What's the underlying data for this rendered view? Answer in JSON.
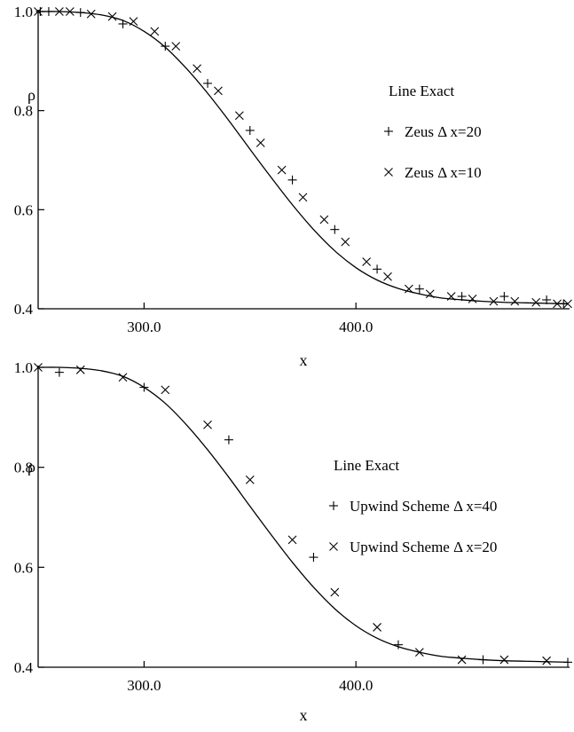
{
  "chart_data": [
    {
      "type": "line",
      "title": "",
      "xlabel": "x",
      "ylabel": "ρ",
      "xlim": [
        250,
        500
      ],
      "ylim": [
        0.4,
        1.0
      ],
      "xticks": [
        300,
        400
      ],
      "xtick_labels": [
        "300.0",
        "400.0"
      ],
      "yticks": [
        0.4,
        0.6,
        0.8,
        1.0
      ],
      "ytick_labels": [
        "0.4",
        "0.6",
        "0.8",
        "1.0"
      ],
      "grid": false,
      "legend_position": "right",
      "series": [
        {
          "name": "Exact",
          "legend_marker": "Line",
          "marker": "line",
          "x": [
            250,
            260,
            270,
            280,
            290,
            300,
            310,
            320,
            330,
            340,
            350,
            360,
            370,
            380,
            390,
            400,
            410,
            420,
            430,
            440,
            450,
            460,
            470,
            480,
            490,
            500
          ],
          "y": [
            1.0,
            1.0,
            0.998,
            0.993,
            0.982,
            0.96,
            0.928,
            0.885,
            0.835,
            0.78,
            0.722,
            0.665,
            0.61,
            0.56,
            0.517,
            0.483,
            0.458,
            0.441,
            0.43,
            0.422,
            0.418,
            0.415,
            0.413,
            0.412,
            0.411,
            0.41
          ]
        },
        {
          "name": "Zeus  Δ x=20",
          "marker": "plus",
          "x": [
            251,
            255,
            270,
            290,
            310,
            330,
            350,
            370,
            390,
            410,
            430,
            450,
            470,
            490,
            498
          ],
          "y": [
            1.0,
            1.0,
            0.998,
            0.975,
            0.93,
            0.855,
            0.76,
            0.66,
            0.56,
            0.48,
            0.44,
            0.425,
            0.425,
            0.418,
            0.41
          ]
        },
        {
          "name": "Zeus   Δ x=10",
          "marker": "cross",
          "x": [
            250,
            260,
            265,
            275,
            285,
            295,
            305,
            315,
            325,
            335,
            345,
            355,
            365,
            375,
            385,
            395,
            405,
            415,
            425,
            435,
            445,
            455,
            465,
            475,
            485,
            495,
            500
          ],
          "y": [
            1.0,
            1.0,
            1.0,
            0.995,
            0.99,
            0.98,
            0.96,
            0.93,
            0.885,
            0.84,
            0.79,
            0.735,
            0.68,
            0.625,
            0.58,
            0.535,
            0.495,
            0.465,
            0.44,
            0.43,
            0.425,
            0.42,
            0.415,
            0.415,
            0.413,
            0.41,
            0.41
          ]
        }
      ]
    },
    {
      "type": "line",
      "title": "",
      "xlabel": "x",
      "ylabel": "ρ",
      "xlim": [
        250,
        500
      ],
      "ylim": [
        0.4,
        1.0
      ],
      "xticks": [
        300,
        400
      ],
      "xtick_labels": [
        "300.0",
        "400.0"
      ],
      "yticks": [
        0.4,
        0.6,
        0.8,
        1.0
      ],
      "ytick_labels": [
        "0.4",
        "0.6",
        "0.8",
        "1.0"
      ],
      "grid": false,
      "legend_position": "right",
      "series": [
        {
          "name": "Exact",
          "legend_marker": "Line",
          "marker": "line",
          "x": [
            250,
            260,
            270,
            280,
            290,
            300,
            310,
            320,
            330,
            340,
            350,
            360,
            370,
            380,
            390,
            400,
            410,
            420,
            430,
            440,
            450,
            460,
            470,
            480,
            490,
            500
          ],
          "y": [
            1.0,
            1.0,
            0.998,
            0.993,
            0.982,
            0.96,
            0.928,
            0.885,
            0.835,
            0.78,
            0.722,
            0.665,
            0.61,
            0.56,
            0.517,
            0.483,
            0.458,
            0.441,
            0.43,
            0.422,
            0.418,
            0.415,
            0.413,
            0.412,
            0.411,
            0.41
          ]
        },
        {
          "name": "Upwind Scheme  Δ x=40",
          "marker": "plus",
          "x": [
            260,
            300,
            340,
            380,
            420,
            460,
            500
          ],
          "y": [
            0.99,
            0.96,
            0.855,
            0.62,
            0.445,
            0.415,
            0.41
          ]
        },
        {
          "name": "Upwind Scheme  Δ x=20",
          "marker": "cross",
          "x": [
            250,
            270,
            290,
            310,
            330,
            350,
            370,
            390,
            410,
            430,
            450,
            470,
            490
          ],
          "y": [
            1.0,
            0.995,
            0.98,
            0.955,
            0.885,
            0.775,
            0.655,
            0.55,
            0.48,
            0.43,
            0.415,
            0.415,
            0.413
          ]
        }
      ]
    }
  ]
}
